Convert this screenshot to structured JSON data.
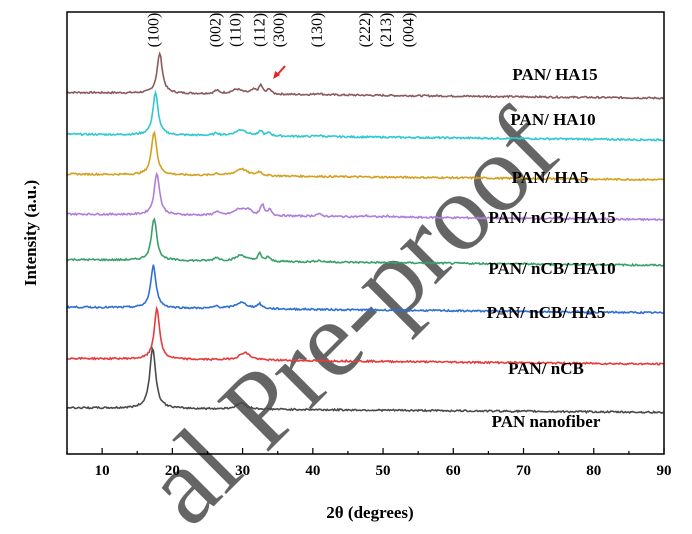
{
  "chart_data": {
    "type": "line",
    "xlabel": "2θ (degrees)",
    "ylabel": "Intensity (a.u.)",
    "xlim": [
      5,
      90
    ],
    "xticks": [
      10,
      20,
      30,
      40,
      50,
      60,
      70,
      80,
      90
    ],
    "y_ticks_shown": false,
    "grid": false,
    "watermark": "al Pre-proof",
    "peak_annotations": [
      {
        "label": "(100)",
        "x": 17.5
      },
      {
        "label": "(002)",
        "x": 26.3
      },
      {
        "label": "(110)",
        "x": 29.2
      },
      {
        "label": "(112)",
        "x": 32.6
      },
      {
        "label": "(300)",
        "x": 35.4
      },
      {
        "label": "(130)",
        "x": 40.8
      },
      {
        "label": "(222)",
        "x": 47.6
      },
      {
        "label": "(213)",
        "x": 50.6
      },
      {
        "label": "(004)",
        "x": 53.8
      }
    ],
    "arrow_color": "#e8202a",
    "series": [
      {
        "name": "PAN/ HA15",
        "color": "#8b5a5c",
        "baseline": 9.2,
        "tail": 9.05,
        "peaks": [
          [
            18.2,
            1.05,
            0.45
          ],
          [
            26.3,
            0.08,
            0.4
          ],
          [
            29.2,
            0.12,
            0.9
          ],
          [
            31.6,
            0.1,
            0.5
          ],
          [
            32.6,
            0.22,
            0.3
          ],
          [
            33.8,
            0.14,
            0.3
          ],
          [
            40.8,
            0.04,
            0.5
          ]
        ]
      },
      {
        "name": "PAN/ HA10",
        "color": "#2ec9cf",
        "baseline": 8.1,
        "tail": 7.95,
        "peaks": [
          [
            17.6,
            1.1,
            0.45
          ],
          [
            26.3,
            0.06,
            0.4
          ],
          [
            29.8,
            0.16,
            1.0
          ],
          [
            32.6,
            0.13,
            0.3
          ],
          [
            33.8,
            0.09,
            0.3
          ],
          [
            40.8,
            0.03,
            0.5
          ]
        ]
      },
      {
        "name": "PAN/ HA5",
        "color": "#d4a020",
        "baseline": 7.05,
        "tail": 6.9,
        "peaks": [
          [
            17.4,
            1.15,
            0.45
          ],
          [
            26.3,
            0.05,
            0.4
          ],
          [
            29.8,
            0.18,
            1.0
          ],
          [
            32.4,
            0.1,
            0.4
          ]
        ]
      },
      {
        "name": "PAN/ nCB/ HA15",
        "color": "#b07ed8",
        "baseline": 6.0,
        "tail": 5.85,
        "peaks": [
          [
            17.8,
            1.1,
            0.45
          ],
          [
            26.3,
            0.1,
            0.4
          ],
          [
            29.5,
            0.16,
            0.9
          ],
          [
            30.8,
            0.14,
            0.6
          ],
          [
            32.8,
            0.28,
            0.3
          ],
          [
            33.9,
            0.16,
            0.3
          ],
          [
            40.8,
            0.06,
            0.5
          ],
          [
            47.6,
            0.03,
            0.4
          ],
          [
            50.6,
            0.03,
            0.4
          ]
        ]
      },
      {
        "name": "PAN/ nCB/ HA10",
        "color": "#3aa06a",
        "baseline": 4.8,
        "tail": 4.65,
        "peaks": [
          [
            17.4,
            1.12,
            0.45
          ],
          [
            26.3,
            0.09,
            0.4
          ],
          [
            29.8,
            0.16,
            0.9
          ],
          [
            32.4,
            0.2,
            0.3
          ],
          [
            33.6,
            0.12,
            0.3
          ],
          [
            40.8,
            0.04,
            0.5
          ]
        ]
      },
      {
        "name": "PAN/ nCB/ HA5",
        "color": "#2f6fd3",
        "baseline": 3.55,
        "tail": 3.4,
        "peaks": [
          [
            17.3,
            1.12,
            0.45
          ],
          [
            26.3,
            0.06,
            0.4
          ],
          [
            29.8,
            0.16,
            1.0
          ],
          [
            32.4,
            0.12,
            0.4
          ]
        ]
      },
      {
        "name": "PAN/ nCB",
        "color": "#e53b3b",
        "baseline": 2.2,
        "tail": 2.05,
        "peaks": [
          [
            17.8,
            1.35,
            0.45
          ],
          [
            30.3,
            0.2,
            0.9
          ]
        ]
      },
      {
        "name": "PAN nanofiber",
        "color": "#4a4a4a",
        "baseline": 0.9,
        "tail": 0.78,
        "peaks": [
          [
            17.2,
            1.6,
            0.5
          ],
          [
            29.8,
            0.16,
            0.8
          ]
        ]
      }
    ]
  }
}
